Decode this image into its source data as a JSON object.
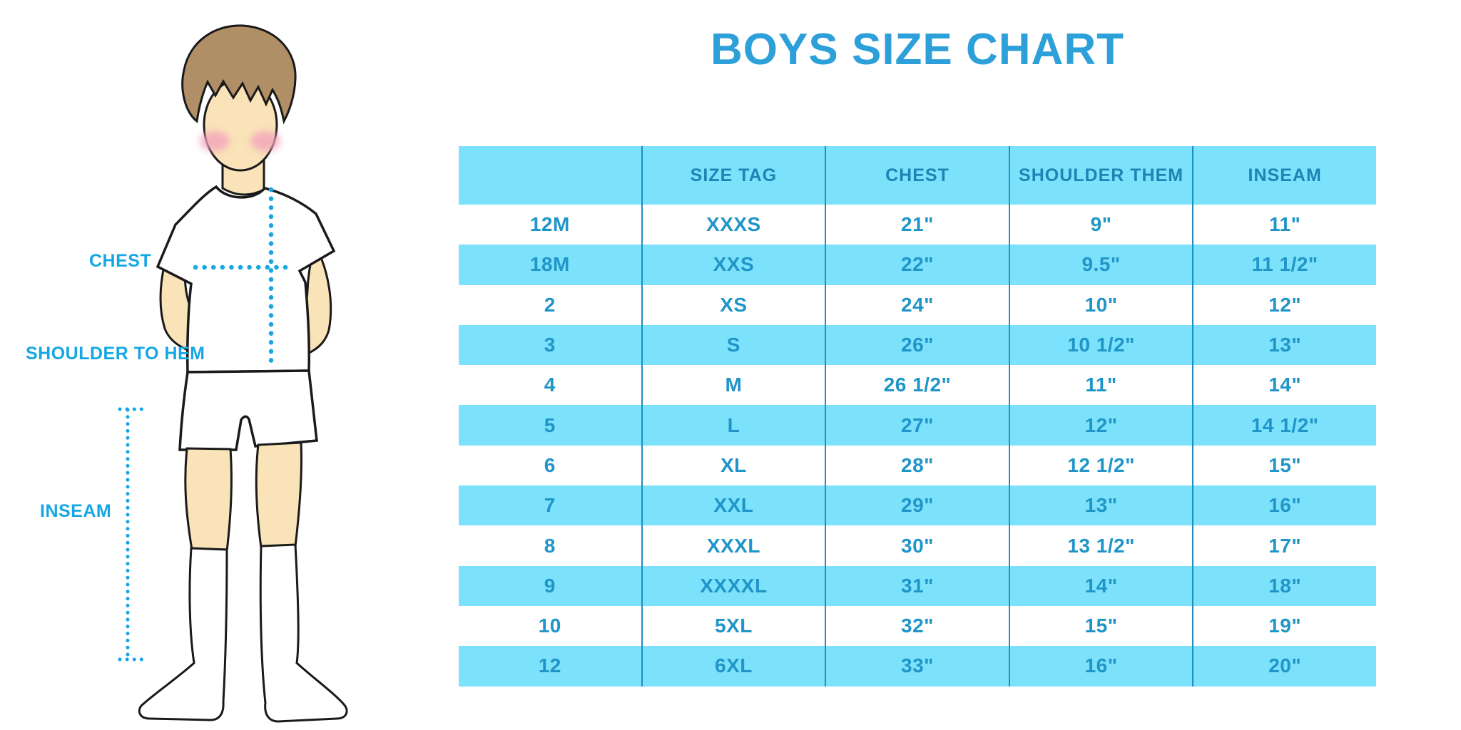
{
  "title": "BOYS SIZE CHART",
  "illustration": {
    "figure": "cartoon boy in white t-shirt, white shorts and knee socks with dotted measurement guide lines",
    "labels": {
      "chest": "CHEST",
      "shoulder_to_hem": "SHOULDER TO HEM",
      "inseam": "INSEAM"
    }
  },
  "chart_data": {
    "type": "table",
    "title": "BOYS SIZE CHART",
    "columns": [
      "",
      "SIZE TAG",
      "CHEST",
      "SHOULDER THEM",
      "INSEAM"
    ],
    "rows": [
      [
        "12M",
        "XXXS",
        "21\"",
        "9\"",
        "11\""
      ],
      [
        "18M",
        "XXS",
        "22\"",
        "9.5\"",
        "11 1/2\""
      ],
      [
        "2",
        "XS",
        "24\"",
        "10\"",
        "12\""
      ],
      [
        "3",
        "S",
        "26\"",
        "10 1/2\"",
        "13\""
      ],
      [
        "4",
        "M",
        "26 1/2\"",
        "11\"",
        "14\""
      ],
      [
        "5",
        "L",
        "27\"",
        "12\"",
        "14 1/2\""
      ],
      [
        "6",
        "XL",
        "28\"",
        "12 1/2\"",
        "15\""
      ],
      [
        "7",
        "XXL",
        "29\"",
        "13\"",
        "16\""
      ],
      [
        "8",
        "XXXL",
        "30\"",
        "13 1/2\"",
        "17\""
      ],
      [
        "9",
        "XXXXL",
        "31\"",
        "14\"",
        "18\""
      ],
      [
        "10",
        "5XL",
        "32\"",
        "15\"",
        "19\""
      ],
      [
        "12",
        "6XL",
        "33\"",
        "16\"",
        "20\""
      ]
    ]
  },
  "colors": {
    "title_blue": "#2d9fd9",
    "row_highlight_blue": "#7ce1fa",
    "table_divider_blue": "#1d8fc0",
    "table_text_blue": "#2095c8",
    "measurement_label_cyan": "#16a7e3",
    "skin": "#fae3b8",
    "hair_brown": "#b18f66",
    "blush_pink": "#f3a3bc"
  }
}
